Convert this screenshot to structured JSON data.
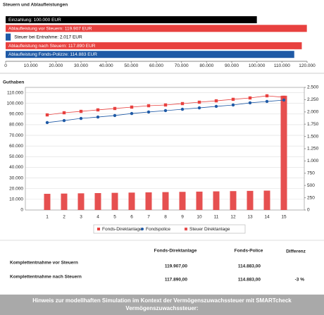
{
  "chart_data": [
    {
      "type": "hbar",
      "title": "Steuern und Ablaufleistungen",
      "values": [
        100000,
        119907,
        2017,
        117890,
        114883
      ],
      "value_labels": [
        "Einzahlung: 100.000 EUR",
        "Ablaufleistung vor Steuern: 119.907 EUR",
        "Steuer bei Entnahme: 2.017 EUR",
        "Ablaufleistung nach Steuern: 117.890 EUR",
        "Ablaufleistung Fonds-Polizze: 114.883 EUR"
      ],
      "colors": [
        "#000000",
        "#e8413f",
        "#1f5aa6",
        "#e8413f",
        "#1f5aa6"
      ],
      "xlim": [
        0,
        120000
      ],
      "xticks": [
        0,
        {
          "value": 10000,
          "label": "10.000"
        },
        {
          "value": 20000,
          "label": "20.000"
        },
        {
          "value": 30000,
          "label": "30.000"
        },
        {
          "value": 40000,
          "label": "40.000"
        },
        {
          "value": 50000,
          "label": "50.000"
        },
        {
          "value": 60000,
          "label": "60.000"
        },
        {
          "value": 70000,
          "label": "70.000"
        },
        {
          "value": 80000,
          "label": "80.000"
        },
        {
          "value": 90000,
          "label": "90.000"
        },
        {
          "value": 100000,
          "label": "100.000"
        },
        {
          "value": 110000,
          "label": "110.000"
        },
        {
          "value": 120000,
          "label": "120.000"
        }
      ]
    },
    {
      "type": "combo",
      "title": "Guthaben",
      "categories": [
        "1",
        "2",
        "3",
        "4",
        "5",
        "6",
        "7",
        "8",
        "9",
        "10",
        "11",
        "12",
        "13",
        "14",
        "15"
      ],
      "series": [
        {
          "name": "Fonds-Direktanlage",
          "color": "#e8413f",
          "kind": "line",
          "marker": "square",
          "values": [
            89200,
            91200,
            92500,
            93900,
            95200,
            96500,
            97800,
            98500,
            99800,
            101100,
            102400,
            103800,
            105100,
            107100,
            105700
          ]
        },
        {
          "name": "Fondspolice",
          "color": "#1f5aa6",
          "kind": "line",
          "marker": "circle",
          "values": [
            82000,
            83900,
            85900,
            87200,
            88600,
            90500,
            91900,
            93200,
            94500,
            95800,
            97200,
            98500,
            100500,
            101800,
            103100
          ]
        },
        {
          "name": "Steuer Direktanlage",
          "color": "#e65050",
          "kind": "bar",
          "marker": "square",
          "axis": "y2",
          "values": [
            330,
            335,
            340,
            345,
            350,
            355,
            360,
            365,
            370,
            375,
            380,
            385,
            390,
            395,
            2330
          ]
        }
      ],
      "ylim": [
        0,
        115000
      ],
      "yticks": [
        0,
        {
          "value": 10000,
          "label": "10.000"
        },
        {
          "value": 20000,
          "label": "20.000"
        },
        {
          "value": 30000,
          "label": "30.000"
        },
        {
          "value": 40000,
          "label": "40.000"
        },
        {
          "value": 50000,
          "label": "50.000"
        },
        {
          "value": 60000,
          "label": "60.000"
        },
        {
          "value": 70000,
          "label": "70.000"
        },
        {
          "value": 80000,
          "label": "80.000"
        },
        {
          "value": 90000,
          "label": "90.000"
        },
        {
          "value": 100000,
          "label": "100.000"
        },
        {
          "value": 110000,
          "label": "110.000"
        }
      ],
      "y2lim": [
        0,
        2500
      ],
      "y2ticks": [
        0,
        250,
        500,
        750,
        {
          "value": 1000,
          "label": "1.000"
        },
        {
          "value": 1250,
          "label": "1.250"
        },
        {
          "value": 1500,
          "label": "1.500"
        },
        {
          "value": 1750,
          "label": "1.750"
        },
        {
          "value": 2000,
          "label": "2.000"
        },
        {
          "value": 2250,
          "label": "2.250"
        },
        {
          "value": 2500,
          "label": "2.500"
        }
      ],
      "grid": true
    }
  ],
  "table": {
    "columns": [
      "Fonds-Direktanlage",
      "Fonds-Police",
      "Differenz"
    ],
    "rows": [
      [
        "Komplettentnahme vor Steuern",
        "119.907,00",
        "114.883,00"
      ],
      [
        "Komplettentnahme nach Steuern",
        "117.890,00",
        "114.883,00",
        "-3 %"
      ]
    ]
  },
  "footer": {
    "text": "Hinweis zur modellhaften Simulation im Kontext der Vermögenszuwachssteuer mit SMARTcheck Vermögenszuwachssteuer:"
  }
}
